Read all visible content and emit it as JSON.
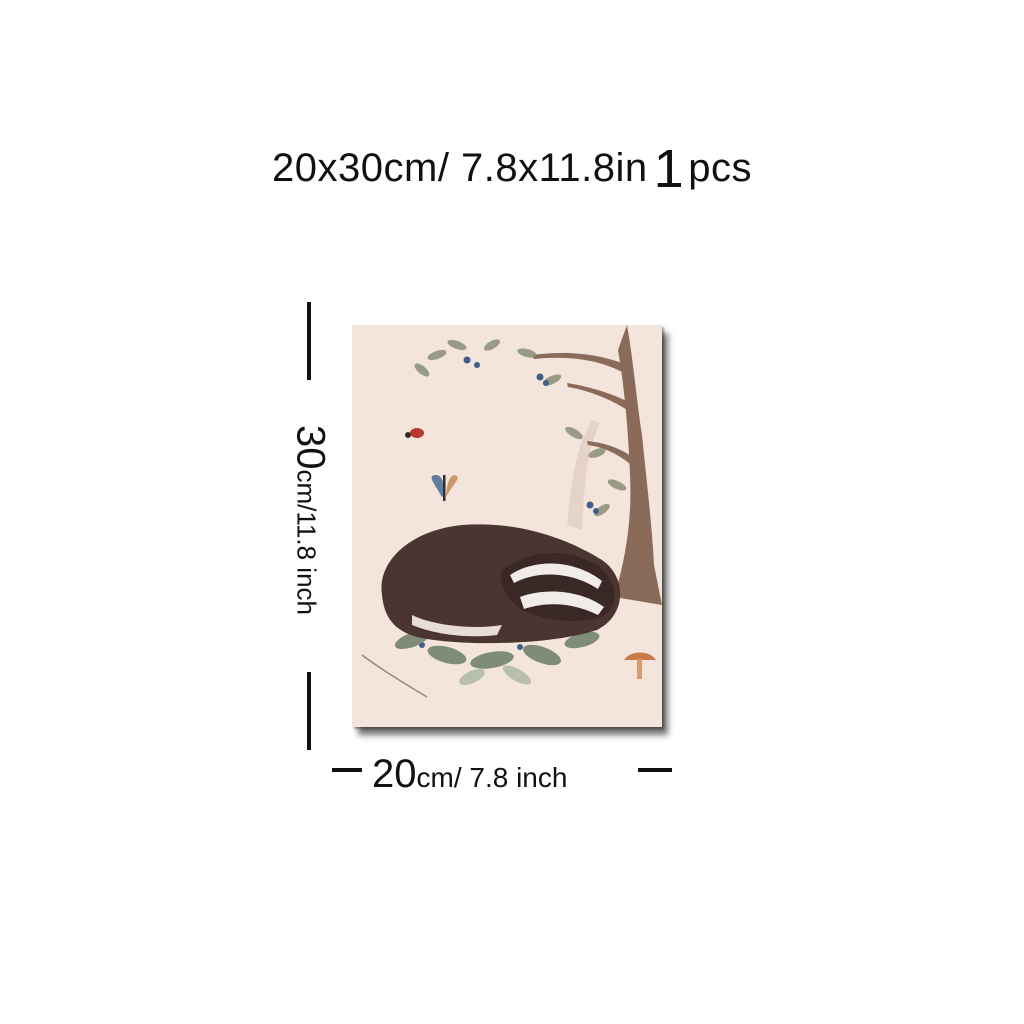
{
  "headline": {
    "size": "20x30cm/ 7.8x11.8in",
    "quantity_number": "1",
    "quantity_unit": "pcs"
  },
  "dimensions": {
    "height_value": "30",
    "height_unit": "cm/11.8 inch",
    "width_value": "20",
    "width_unit": "cm/ 7.8 inch"
  },
  "artwork": {
    "subject": "sleeping badger under a tree with butterfly, ladybug, berries and mushroom",
    "background_color": "#f3e4dc",
    "badger_color": "#4a3530",
    "tree_color": "#8a6a58",
    "leaf_color": "#8b8f78",
    "berry_color": "#3f5f86",
    "mushroom_color": "#c9794a"
  }
}
